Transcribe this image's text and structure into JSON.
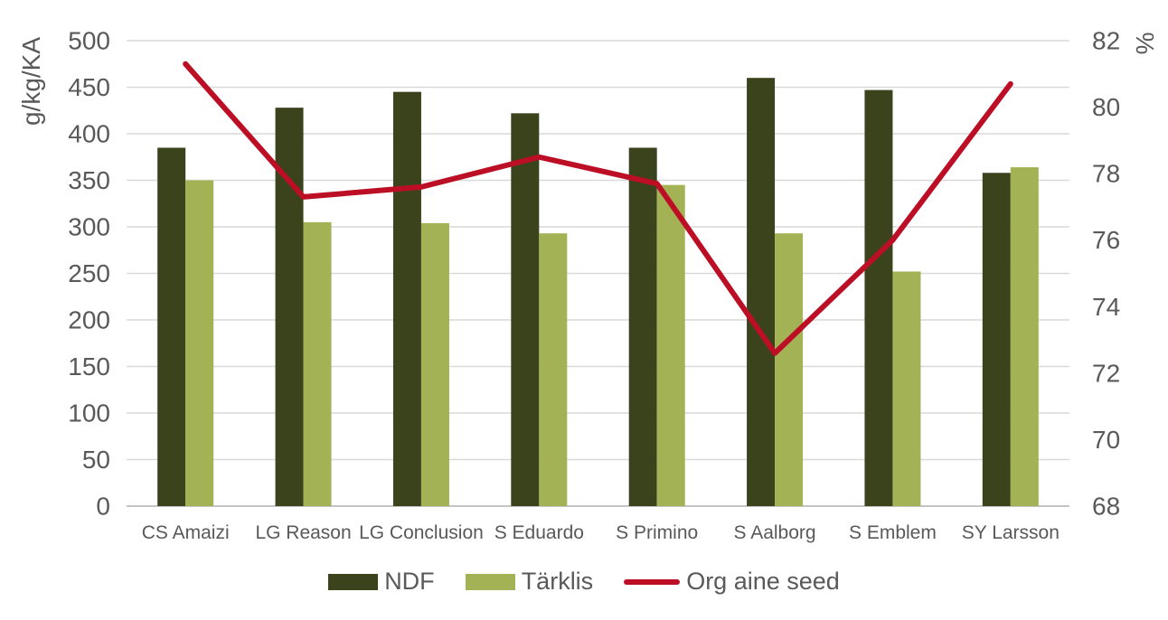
{
  "chart_data": {
    "type": "combo",
    "title": "",
    "categories": [
      "CS Amaizi",
      "LG Reason",
      "LG Conclusion",
      "S Eduardo",
      "S Primino",
      "S Aalborg",
      "S Emblem",
      "SY Larsson"
    ],
    "series": [
      {
        "name": "NDF",
        "type": "bar",
        "axis": "left",
        "color": "#3a431c",
        "values": [
          385,
          428,
          445,
          422,
          385,
          460,
          447,
          358
        ]
      },
      {
        "name": "Tärklis",
        "type": "bar",
        "axis": "left",
        "color": "#a2b254",
        "values": [
          350,
          305,
          304,
          293,
          345,
          293,
          252,
          364
        ]
      },
      {
        "name": "Org aine seed",
        "type": "line",
        "axis": "right",
        "color": "#bc0f26",
        "values": [
          81.3,
          77.3,
          77.6,
          78.5,
          77.7,
          72.6,
          76.0,
          80.7
        ]
      }
    ],
    "left_axis": {
      "title": "g/kg/KA",
      "min": 0,
      "max": 500,
      "step": 50,
      "tick_labels": [
        "0",
        "50",
        "100",
        "150",
        "200",
        "250",
        "300",
        "350",
        "400",
        "450",
        "500"
      ]
    },
    "right_axis": {
      "title": "%",
      "min": 68,
      "max": 82,
      "step": 2,
      "tick_labels": [
        "68",
        "70",
        "72",
        "74",
        "76",
        "78",
        "80",
        "82"
      ]
    },
    "grid": true,
    "legend_position": "bottom"
  },
  "colors": {
    "text": "#595959",
    "gridline": "#d9d9d9",
    "axis_line": "#c4c4c4",
    "background": "#ffffff",
    "ndf_bar": "#3a431c",
    "tarklis_bar": "#a2b254",
    "org_aine_line": "#bc0f26"
  },
  "legend": {
    "items": [
      {
        "label": "NDF",
        "swatch": "bar",
        "color": "#3a431c"
      },
      {
        "label": "Tärklis",
        "swatch": "bar",
        "color": "#a2b254"
      },
      {
        "label": "Org aine seed",
        "swatch": "line",
        "color": "#bc0f26"
      }
    ]
  }
}
